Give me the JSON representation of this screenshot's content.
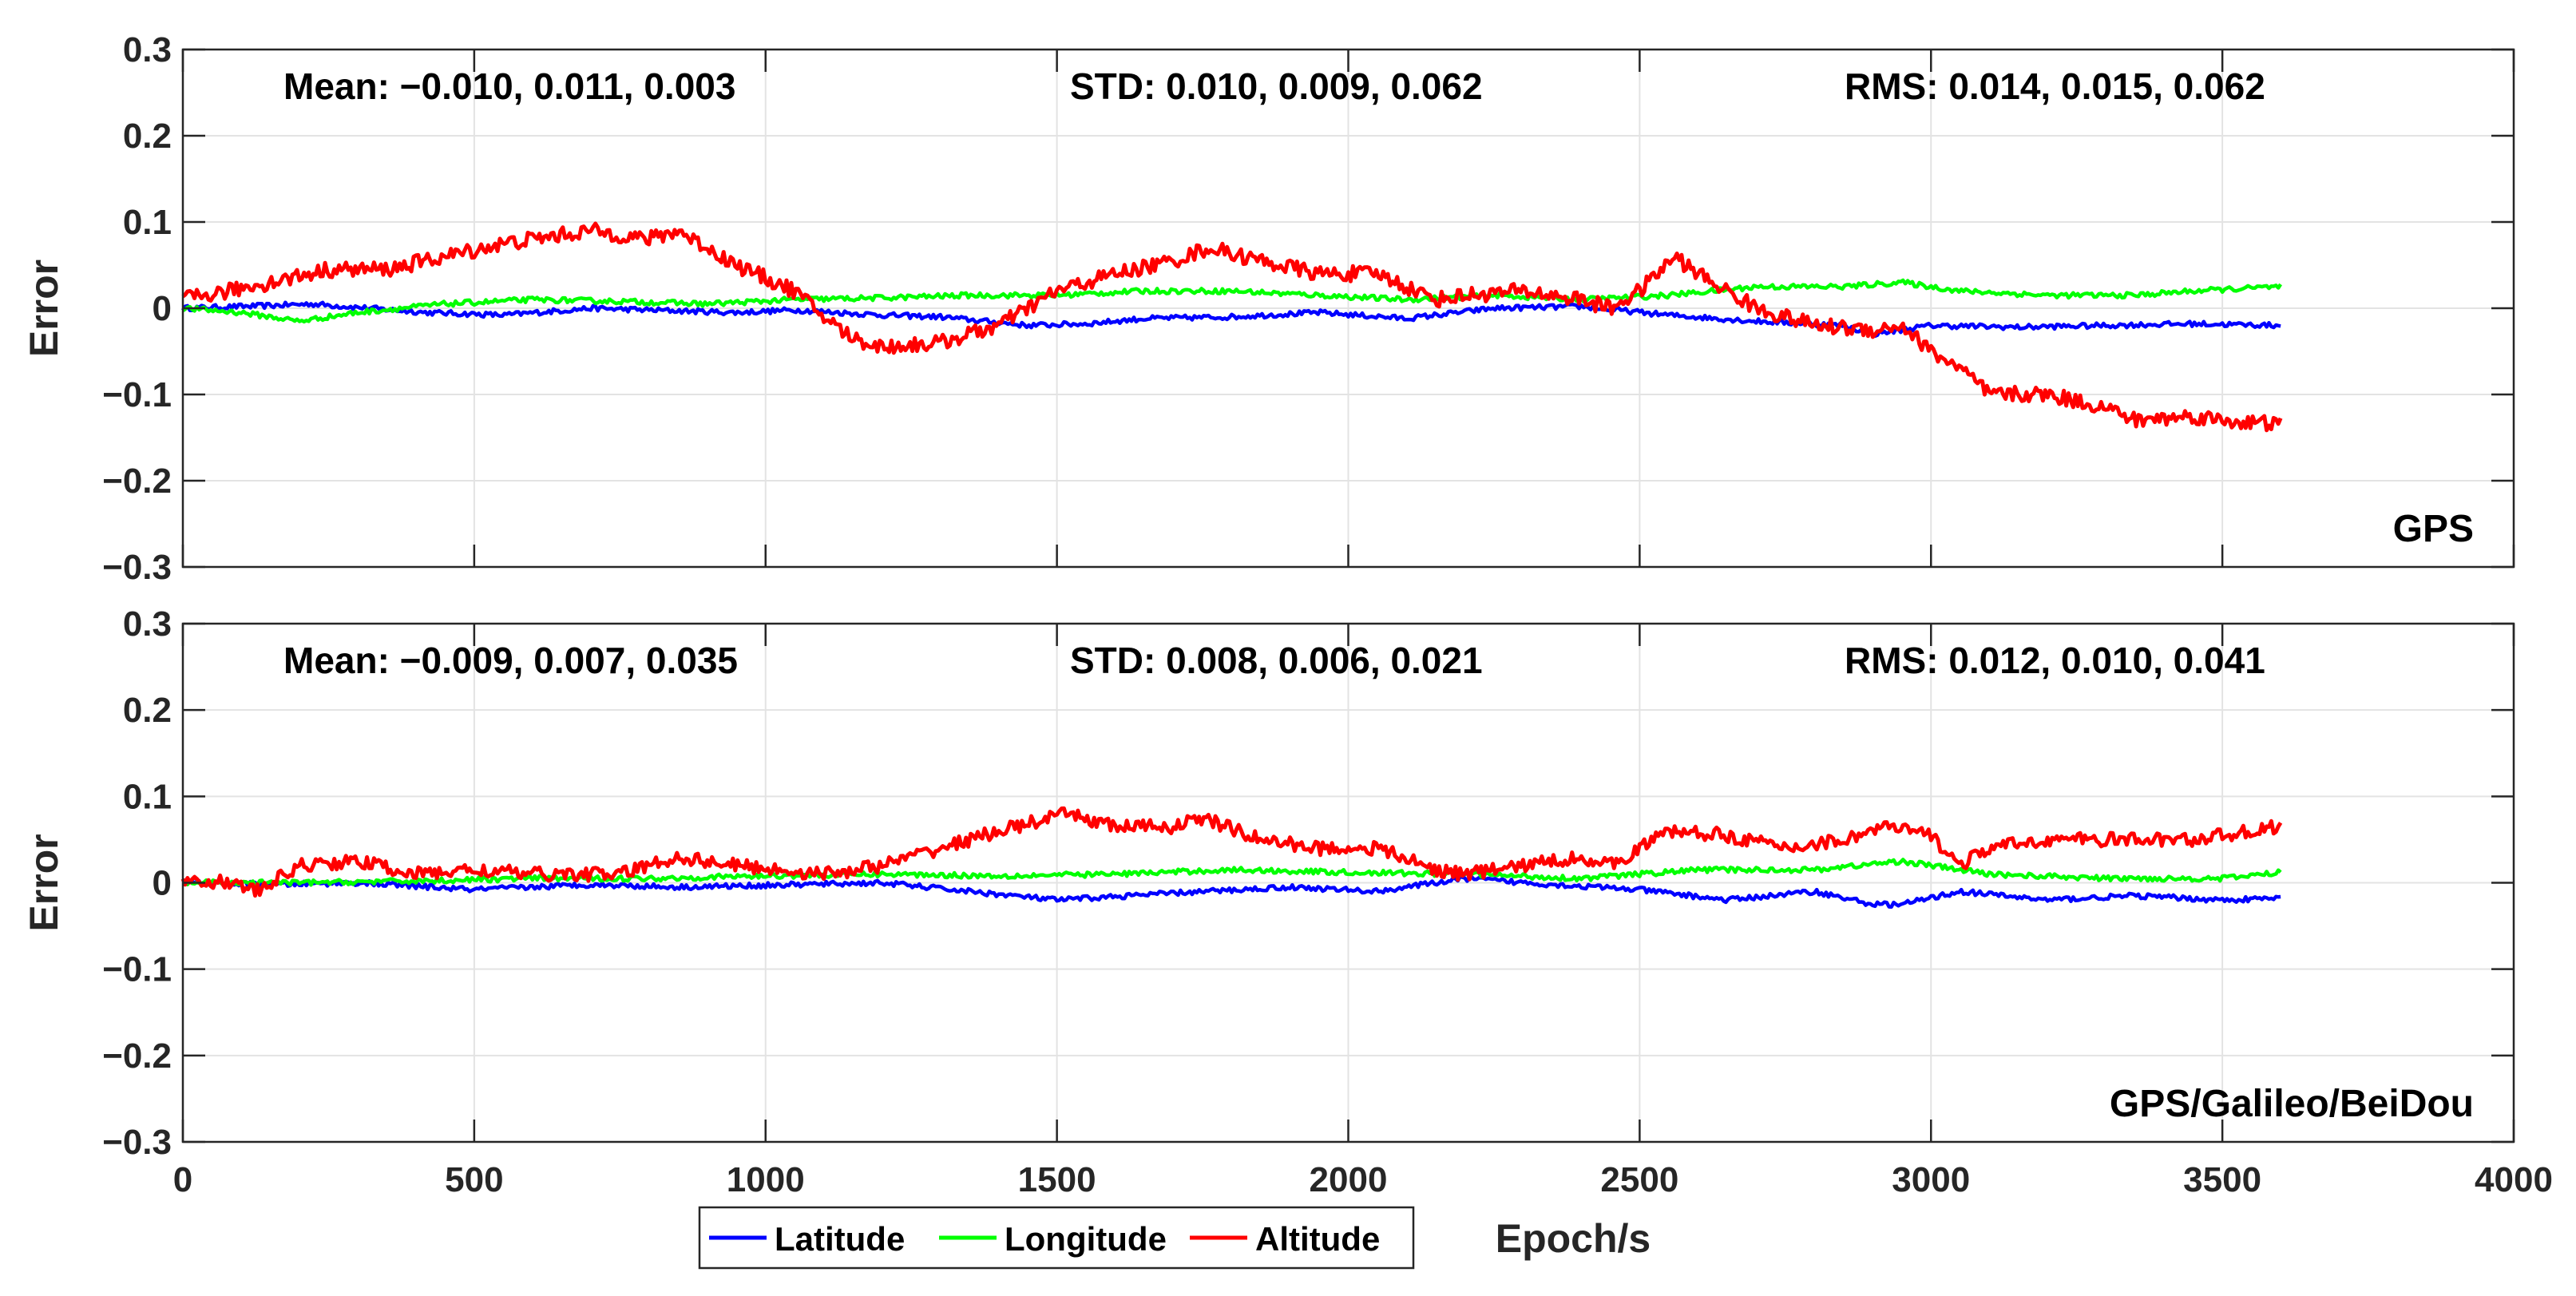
{
  "chart_data": [
    {
      "type": "line",
      "title": "",
      "label": "GPS",
      "xlabel": "Epoch/s",
      "ylabel": "Error",
      "xlim": [
        0,
        4000
      ],
      "ylim": [
        -0.3,
        0.3
      ],
      "xticks": [
        "0",
        "500",
        "1000",
        "1500",
        "2000",
        "2500",
        "3000",
        "3500",
        "4000"
      ],
      "yticks": [
        "0.3",
        "0.2",
        "0.1",
        "0",
        "−0.1",
        "−0.2",
        "−0.3"
      ],
      "grid": true,
      "annotations": {
        "mean": "Mean: −0.010, 0.011, 0.003",
        "std": "STD: 0.010, 0.009, 0.062",
        "rms": "RMS: 0.014, 0.015, 0.062"
      },
      "series": [
        {
          "name": "Latitude",
          "color": "#0000ff",
          "noise": 0.003,
          "x": [
            0,
            150,
            220,
            300,
            420,
            550,
            700,
            800,
            950,
            1050,
            1200,
            1300,
            1450,
            1550,
            1650,
            1800,
            1950,
            2100,
            2250,
            2400,
            2550,
            2700,
            2850,
            2900,
            3000,
            3150,
            3300,
            3450,
            3600
          ],
          "y": [
            0,
            0.003,
            0.005,
            0.001,
            -0.005,
            -0.008,
            0,
            -0.002,
            -0.005,
            -0.002,
            -0.008,
            -0.01,
            -0.02,
            -0.018,
            -0.012,
            -0.01,
            -0.005,
            -0.012,
            0,
            0.002,
            -0.008,
            -0.015,
            -0.02,
            -0.03,
            -0.02,
            -0.022,
            -0.02,
            -0.018,
            -0.02
          ]
        },
        {
          "name": "Longitude",
          "color": "#00ff00",
          "noise": 0.003,
          "x": [
            0,
            100,
            200,
            300,
            450,
            600,
            750,
            900,
            1050,
            1200,
            1350,
            1500,
            1650,
            1800,
            1950,
            2100,
            2250,
            2400,
            2550,
            2700,
            2850,
            2950,
            3050,
            3200,
            3350,
            3450,
            3600
          ],
          "y": [
            0,
            -0.005,
            -0.015,
            -0.005,
            0.005,
            0.01,
            0.008,
            0.005,
            0.01,
            0.012,
            0.015,
            0.015,
            0.02,
            0.02,
            0.015,
            0.01,
            0.015,
            0.01,
            0.015,
            0.025,
            0.025,
            0.03,
            0.02,
            0.015,
            0.015,
            0.02,
            0.025
          ]
        },
        {
          "name": "Altitude",
          "color": "#ff0000",
          "noise": 0.009,
          "x": [
            0,
            80,
            150,
            250,
            350,
            450,
            550,
            650,
            700,
            800,
            850,
            950,
            1050,
            1100,
            1150,
            1200,
            1300,
            1400,
            1500,
            1600,
            1700,
            1760,
            1850,
            1950,
            2050,
            2150,
            2200,
            2300,
            2400,
            2450,
            2500,
            2560,
            2600,
            2700,
            2800,
            2900,
            2950,
            3000,
            3050,
            3100,
            3200,
            3300,
            3350,
            3450,
            3500,
            3600
          ],
          "y": [
            0.01,
            0.02,
            0.03,
            0.045,
            0.045,
            0.06,
            0.075,
            0.085,
            0.09,
            0.08,
            0.09,
            0.05,
            0.02,
            -0.01,
            -0.035,
            -0.045,
            -0.04,
            -0.02,
            0.02,
            0.04,
            0.055,
            0.07,
            0.055,
            0.04,
            0.04,
            0.01,
            0.015,
            0.02,
            0.01,
            0,
            0.02,
            0.06,
            0.04,
            0,
            -0.02,
            -0.025,
            -0.02,
            -0.05,
            -0.07,
            -0.1,
            -0.1,
            -0.115,
            -0.13,
            -0.125,
            -0.13,
            -0.135
          ]
        }
      ]
    },
    {
      "type": "line",
      "title": "",
      "label": "GPS/Galileo/BeiDou",
      "xlabel": "Epoch/s",
      "ylabel": "Error",
      "xlim": [
        0,
        4000
      ],
      "ylim": [
        -0.3,
        0.3
      ],
      "xticks": [
        "0",
        "500",
        "1000",
        "1500",
        "2000",
        "2500",
        "3000",
        "3500",
        "4000"
      ],
      "yticks": [
        "0.3",
        "0.2",
        "0.1",
        "0",
        "−0.1",
        "−0.2",
        "−0.3"
      ],
      "grid": true,
      "annotations": {
        "mean": "Mean: −0.009, 0.007, 0.035",
        "std": "STD: 0.008, 0.006, 0.021",
        "rms": "RMS: 0.012, 0.010, 0.041"
      },
      "series": [
        {
          "name": "Latitude",
          "color": "#0000ff",
          "noise": 0.003,
          "x": [
            0,
            150,
            300,
            500,
            700,
            850,
            1000,
            1200,
            1350,
            1500,
            1700,
            1900,
            2050,
            2200,
            2350,
            2500,
            2650,
            2800,
            2900,
            2950,
            3050,
            3200,
            3350,
            3500,
            3600
          ],
          "y": [
            0,
            -0.002,
            0,
            -0.008,
            -0.002,
            -0.005,
            -0.003,
            0,
            -0.01,
            -0.02,
            -0.012,
            -0.005,
            -0.01,
            0.005,
            -0.002,
            -0.008,
            -0.02,
            -0.01,
            -0.025,
            -0.025,
            -0.01,
            -0.02,
            -0.015,
            -0.02,
            -0.018
          ]
        },
        {
          "name": "Longitude",
          "color": "#00ff00",
          "noise": 0.003,
          "x": [
            0,
            200,
            400,
            600,
            800,
            1000,
            1200,
            1400,
            1600,
            1800,
            2000,
            2200,
            2400,
            2600,
            2800,
            2950,
            3100,
            3300,
            3500,
            3600
          ],
          "y": [
            0,
            0,
            0.002,
            0.005,
            0.005,
            0.008,
            0.01,
            0.008,
            0.01,
            0.015,
            0.012,
            0.01,
            0.005,
            0.015,
            0.015,
            0.025,
            0.01,
            0.005,
            0.005,
            0.012
          ]
        },
        {
          "name": "Altitude",
          "color": "#ff0000",
          "noise": 0.008,
          "x": [
            0,
            80,
            130,
            200,
            300,
            400,
            500,
            600,
            750,
            850,
            950,
            1100,
            1200,
            1300,
            1400,
            1520,
            1600,
            1700,
            1750,
            1850,
            1950,
            2050,
            2150,
            2200,
            2300,
            2400,
            2450,
            2550,
            2650,
            2750,
            2850,
            2920,
            3000,
            3050,
            3100,
            3200,
            3300,
            3450,
            3600
          ],
          "y": [
            0.005,
            0,
            -0.01,
            0.02,
            0.025,
            0.01,
            0.015,
            0.01,
            0.01,
            0.03,
            0.02,
            0.01,
            0.02,
            0.04,
            0.06,
            0.08,
            0.065,
            0.065,
            0.075,
            0.05,
            0.04,
            0.04,
            0.015,
            0.01,
            0.02,
            0.03,
            0.02,
            0.06,
            0.055,
            0.04,
            0.05,
            0.065,
            0.055,
            0.02,
            0.04,
            0.05,
            0.05,
            0.05,
            0.065
          ]
        }
      ]
    }
  ],
  "legend": {
    "position": "bottom-left",
    "items": [
      {
        "label": "Latitude",
        "color": "#0000ff"
      },
      {
        "label": "Longitude",
        "color": "#00ff00"
      },
      {
        "label": "Altitude",
        "color": "#ff0000"
      }
    ]
  }
}
